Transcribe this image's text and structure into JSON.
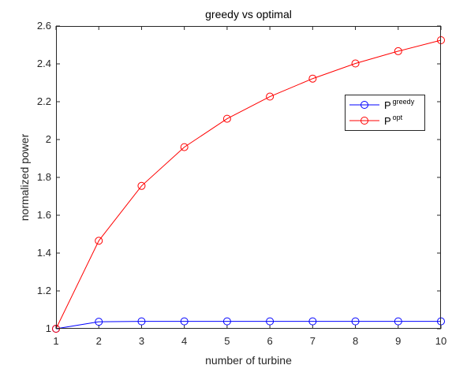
{
  "chart_data": {
    "type": "line",
    "title": "greedy vs optimal",
    "xlabel": "number of turbine",
    "ylabel": "normalized power",
    "x": [
      1,
      2,
      3,
      4,
      5,
      6,
      7,
      8,
      9,
      10
    ],
    "xlim": [
      1,
      10
    ],
    "ylim": [
      1,
      2.6
    ],
    "xticks": [
      1,
      2,
      3,
      4,
      5,
      6,
      7,
      8,
      9,
      10
    ],
    "yticks": [
      1,
      1.2,
      1.4,
      1.6,
      1.8,
      2,
      2.2,
      2.4,
      2.6
    ],
    "ytick_labels": [
      "1",
      "1.2",
      "1.4",
      "1.6",
      "1.8",
      "2",
      "2.2",
      "2.4",
      "2.6"
    ],
    "grid": false,
    "legend_position": "top-right",
    "series": [
      {
        "name_base": "P",
        "name_sup": "greedy",
        "color": "#0000ff",
        "marker": "circle-open",
        "values": [
          1.0,
          1.037,
          1.039,
          1.039,
          1.039,
          1.039,
          1.039,
          1.039,
          1.039,
          1.039
        ]
      },
      {
        "name_base": "P",
        "name_sup": "opt",
        "color": "#ff0000",
        "marker": "circle-open",
        "values": [
          1.0,
          1.465,
          1.755,
          1.96,
          2.11,
          2.227,
          2.322,
          2.402,
          2.467,
          2.525
        ]
      }
    ]
  }
}
